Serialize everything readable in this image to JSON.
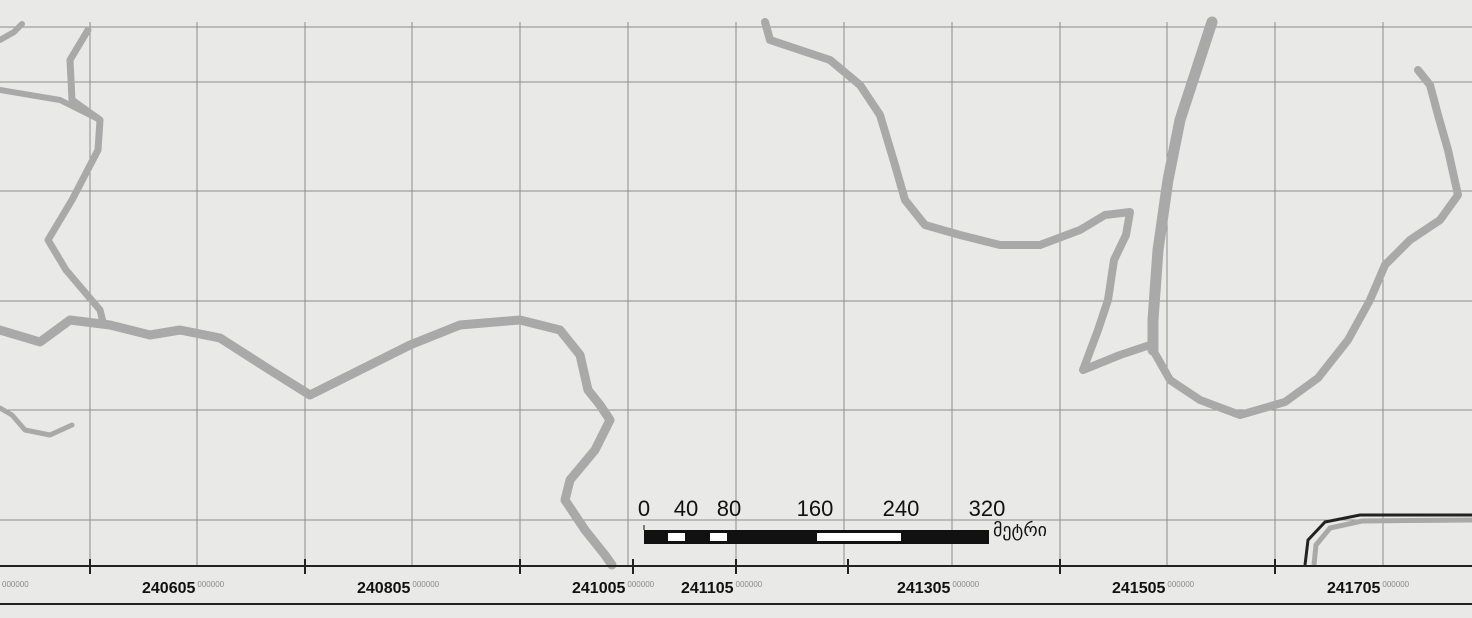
{
  "map": {
    "background_color": "#e9e9e7",
    "grid_color": "#6f6f6f",
    "river_color": "#a9a9a9",
    "road_color": "#222222",
    "x_axis": {
      "labels": [
        {
          "value": "240605",
          "suffix": "000000"
        },
        {
          "value": "240805",
          "suffix": "000000"
        },
        {
          "value": "241005",
          "suffix": "000000"
        },
        {
          "value": "241105",
          "suffix": "000000"
        },
        {
          "value": "241305",
          "suffix": "000000"
        },
        {
          "value": "241505",
          "suffix": "000000"
        },
        {
          "value": "241705",
          "suffix": "000000"
        }
      ],
      "left_edge_fragment": "000000"
    },
    "scale_bar": {
      "tick_labels": [
        "0",
        "40",
        "80",
        "160",
        "240",
        "320"
      ],
      "unit": "მეტრი"
    }
  }
}
